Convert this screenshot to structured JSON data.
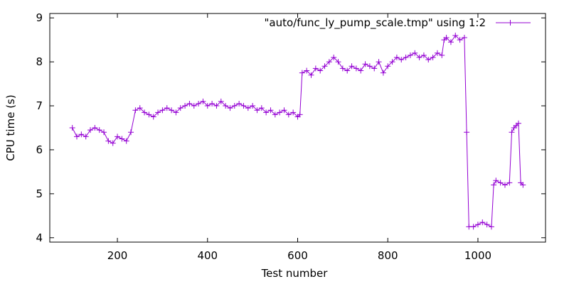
{
  "chart_data": {
    "type": "line",
    "title": "",
    "xlabel": "Test number",
    "ylabel": "CPU time (s)",
    "xlim": [
      50,
      1150
    ],
    "ylim": [
      3.9,
      9.1
    ],
    "x_ticks": [
      200,
      400,
      600,
      800,
      1000
    ],
    "y_ticks": [
      4,
      5,
      6,
      7,
      8,
      9
    ],
    "grid": false,
    "legend_position": "top-right",
    "marker": "plus",
    "series": [
      {
        "name": "\"auto/func_ly_pump_scale.tmp\" using 1:2",
        "color": "#9400d3",
        "x": [
          100,
          110,
          120,
          130,
          140,
          150,
          160,
          170,
          180,
          190,
          200,
          210,
          220,
          230,
          240,
          250,
          260,
          270,
          280,
          290,
          300,
          310,
          320,
          330,
          340,
          350,
          360,
          370,
          380,
          390,
          400,
          410,
          420,
          430,
          440,
          450,
          460,
          470,
          480,
          490,
          500,
          510,
          520,
          530,
          540,
          550,
          560,
          570,
          580,
          590,
          600,
          605,
          610,
          620,
          630,
          640,
          650,
          660,
          670,
          680,
          690,
          700,
          710,
          720,
          730,
          740,
          750,
          760,
          770,
          780,
          790,
          800,
          810,
          820,
          830,
          840,
          850,
          860,
          870,
          880,
          890,
          900,
          910,
          920,
          925,
          930,
          940,
          950,
          960,
          970,
          975,
          980,
          990,
          1000,
          1010,
          1020,
          1030,
          1035,
          1040,
          1050,
          1060,
          1070,
          1075,
          1080,
          1085,
          1090,
          1095,
          1100
        ],
        "values": [
          6.5,
          6.3,
          6.35,
          6.3,
          6.45,
          6.5,
          6.45,
          6.4,
          6.2,
          6.15,
          6.3,
          6.25,
          6.2,
          6.4,
          6.9,
          6.95,
          6.85,
          6.8,
          6.75,
          6.85,
          6.9,
          6.95,
          6.9,
          6.85,
          6.95,
          7.0,
          7.05,
          7.0,
          7.05,
          7.1,
          7.0,
          7.05,
          7.0,
          7.1,
          7.0,
          6.95,
          7.0,
          7.05,
          7.0,
          6.95,
          7.0,
          6.9,
          6.95,
          6.85,
          6.9,
          6.8,
          6.85,
          6.9,
          6.8,
          6.85,
          6.75,
          6.8,
          7.75,
          7.8,
          7.7,
          7.85,
          7.8,
          7.9,
          8.0,
          8.1,
          8.0,
          7.85,
          7.8,
          7.9,
          7.85,
          7.8,
          7.95,
          7.9,
          7.85,
          8.0,
          7.75,
          7.9,
          8.0,
          8.1,
          8.05,
          8.1,
          8.15,
          8.2,
          8.1,
          8.15,
          8.05,
          8.1,
          8.2,
          8.15,
          8.5,
          8.55,
          8.45,
          8.6,
          8.5,
          8.55,
          6.4,
          4.25,
          4.25,
          4.3,
          4.35,
          4.3,
          4.25,
          5.2,
          5.3,
          5.25,
          5.2,
          5.25,
          6.4,
          6.5,
          6.55,
          6.6,
          5.25,
          5.2
        ]
      }
    ]
  }
}
